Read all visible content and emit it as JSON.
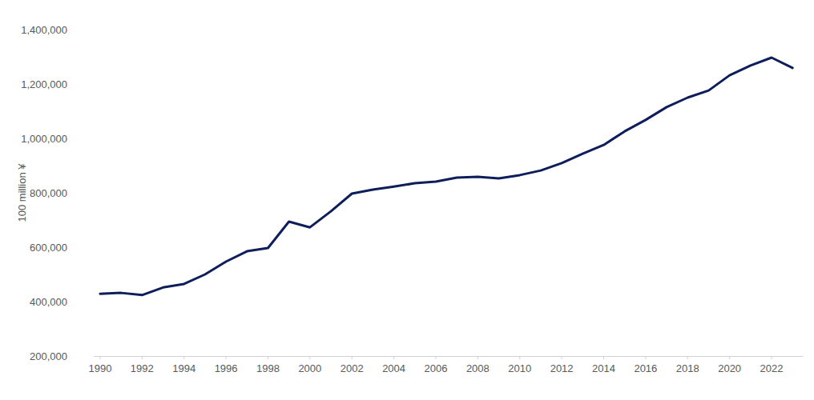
{
  "chart_data": {
    "type": "line",
    "y_label": "100 million ¥",
    "x": [
      1990,
      1991,
      1992,
      1993,
      1994,
      1995,
      1996,
      1997,
      1998,
      1999,
      2000,
      2001,
      2002,
      2003,
      2004,
      2005,
      2006,
      2007,
      2008,
      2009,
      2010,
      2011,
      2012,
      2013,
      2014,
      2015,
      2016,
      2017,
      2018,
      2019,
      2020,
      2021,
      2022,
      2023
    ],
    "values": [
      429000,
      432000,
      424000,
      452000,
      465000,
      500000,
      547000,
      585000,
      597000,
      694000,
      673000,
      732000,
      797000,
      812000,
      823000,
      835000,
      841000,
      856000,
      859000,
      853000,
      865000,
      882000,
      909000,
      944000,
      976000,
      1026000,
      1068000,
      1115000,
      1150000,
      1176000,
      1232000,
      1268000,
      1297000,
      1259000
    ],
    "color": "#0e1e5b",
    "xlim": [
      1989.7,
      2023.5
    ],
    "xticks": [
      1990,
      1992,
      1994,
      1996,
      1998,
      2000,
      2002,
      2004,
      2006,
      2008,
      2010,
      2012,
      2014,
      2016,
      2018,
      2020,
      2022
    ],
    "ylim": [
      200000,
      1400000
    ],
    "yticks": [
      {
        "value": 200000,
        "label": "200,000"
      },
      {
        "value": 400000,
        "label": "400,000"
      },
      {
        "value": 600000,
        "label": "600,000"
      },
      {
        "value": 800000,
        "label": "800,000"
      },
      {
        "value": 1000000,
        "label": "1,000,000"
      },
      {
        "value": 1200000,
        "label": "1,200,000"
      },
      {
        "value": 1400000,
        "label": "1,400,000"
      }
    ],
    "grid": false
  }
}
